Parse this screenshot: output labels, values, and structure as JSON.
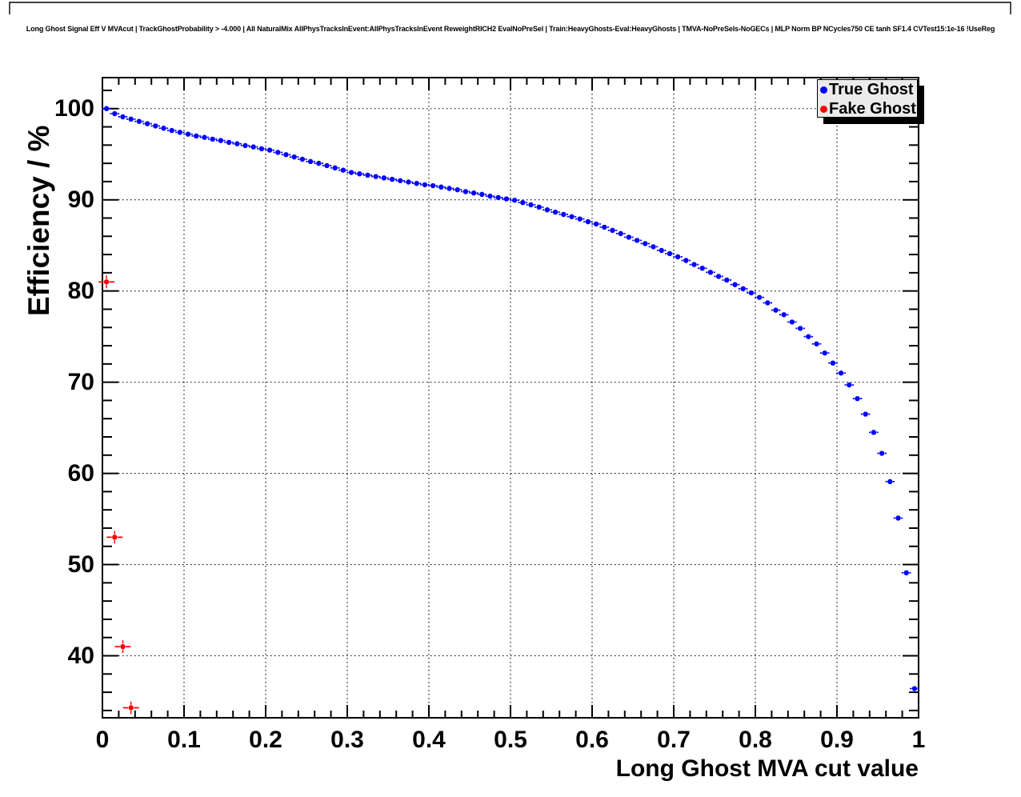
{
  "colors": {
    "true_ghost": "#0000ff",
    "fake_ghost": "#ff0000",
    "legend_background": "#ebebeb",
    "frame": "#000000",
    "grid": "#000000",
    "background": "#ffffff"
  },
  "legend": {
    "position": "top-right",
    "entries": [
      {
        "label": "True Ghost",
        "color": "#0000ff",
        "marker": "filled-circle"
      },
      {
        "label": "Fake Ghost",
        "color": "#ff0000",
        "marker": "filled-circle"
      }
    ]
  },
  "chart_data": {
    "type": "scatter",
    "title": "Long Ghost Signal Eff V MVAcut | TrackGhostProbability > -4.000 | All NaturalMix AllPhysTracksInEvent:AllPhysTracksInEvent ReweightRICH2 EvalNoPreSel | Train:HeavyGhosts-Eval:HeavyGhosts | TMVA-NoPreSels-NoGECs | MLP Norm BP NCycles750 CE tanh SF1.4 CVTest15:1e-16 !UseReg",
    "xlabel": "Long Ghost MVA cut value",
    "ylabel": "Efficiency / %",
    "xlim": [
      0,
      1
    ],
    "ylim": [
      33.2,
      103.4
    ],
    "grid": "dotted-at-major-ticks-both-axes",
    "legend_position": "top-right",
    "x_axis": {
      "major_ticks": [
        0,
        0.1,
        0.2,
        0.3,
        0.4,
        0.5,
        0.6,
        0.7,
        0.8,
        0.9,
        1
      ],
      "tick_labels": [
        "0",
        "0.1",
        "0.2",
        "0.3",
        "0.4",
        "0.5",
        "0.6",
        "0.7",
        "0.8",
        "0.9",
        "1"
      ],
      "minor_tick_step": 0.02
    },
    "y_axis": {
      "major_ticks": [
        40,
        50,
        60,
        70,
        80,
        90,
        100
      ],
      "tick_labels": [
        "40",
        "50",
        "60",
        "70",
        "80",
        "90",
        "100"
      ],
      "minor_tick_step": 2
    },
    "series": [
      {
        "name": "True Ghost",
        "color": "#0000ff",
        "marker": "filled-circle",
        "error_bars": "x",
        "x": [
          0.005,
          0.015,
          0.025,
          0.035,
          0.045,
          0.055,
          0.065,
          0.075,
          0.085,
          0.095,
          0.105,
          0.115,
          0.125,
          0.135,
          0.145,
          0.155,
          0.165,
          0.175,
          0.185,
          0.195,
          0.205,
          0.215,
          0.225,
          0.235,
          0.245,
          0.255,
          0.265,
          0.275,
          0.285,
          0.295,
          0.305,
          0.315,
          0.325,
          0.335,
          0.345,
          0.355,
          0.365,
          0.375,
          0.385,
          0.395,
          0.405,
          0.415,
          0.425,
          0.435,
          0.445,
          0.455,
          0.465,
          0.475,
          0.485,
          0.495,
          0.505,
          0.515,
          0.525,
          0.535,
          0.545,
          0.555,
          0.565,
          0.575,
          0.585,
          0.595,
          0.605,
          0.615,
          0.625,
          0.635,
          0.645,
          0.655,
          0.665,
          0.675,
          0.685,
          0.695,
          0.705,
          0.715,
          0.725,
          0.735,
          0.745,
          0.755,
          0.765,
          0.775,
          0.785,
          0.795,
          0.805,
          0.815,
          0.825,
          0.835,
          0.845,
          0.855,
          0.865,
          0.875,
          0.885,
          0.895,
          0.905,
          0.915,
          0.925,
          0.935,
          0.945,
          0.955,
          0.965,
          0.975,
          0.985,
          0.995
        ],
        "y": [
          100.0,
          99.45,
          99.1,
          98.85,
          98.6,
          98.35,
          98.1,
          97.85,
          97.6,
          97.4,
          97.2,
          97.0,
          96.85,
          96.65,
          96.5,
          96.3,
          96.15,
          95.95,
          95.8,
          95.6,
          95.45,
          95.2,
          94.95,
          94.7,
          94.45,
          94.2,
          94.0,
          93.75,
          93.5,
          93.25,
          93.0,
          92.85,
          92.7,
          92.55,
          92.4,
          92.25,
          92.1,
          91.95,
          91.8,
          91.65,
          91.55,
          91.4,
          91.25,
          91.1,
          90.9,
          90.75,
          90.6,
          90.4,
          90.25,
          90.1,
          89.95,
          89.7,
          89.45,
          89.2,
          88.9,
          88.65,
          88.4,
          88.15,
          87.9,
          87.6,
          87.35,
          87.0,
          86.65,
          86.3,
          85.9,
          85.55,
          85.2,
          84.85,
          84.45,
          84.1,
          83.75,
          83.35,
          82.9,
          82.5,
          82.05,
          81.6,
          81.2,
          80.7,
          80.25,
          79.8,
          79.3,
          78.7,
          77.9,
          77.4,
          76.6,
          75.9,
          75.0,
          74.2,
          73.2,
          72.1,
          71.0,
          69.7,
          68.2,
          66.5,
          64.5,
          62.2,
          59.1,
          55.1,
          49.1,
          36.4
        ]
      },
      {
        "name": "Fake Ghost",
        "color": "#ff0000",
        "marker": "filled-circle",
        "error_bars": "xy",
        "x": [
          0.005,
          0.015,
          0.025,
          0.035
        ],
        "y": [
          81.0,
          53.0,
          41.0,
          34.3
        ]
      }
    ]
  }
}
